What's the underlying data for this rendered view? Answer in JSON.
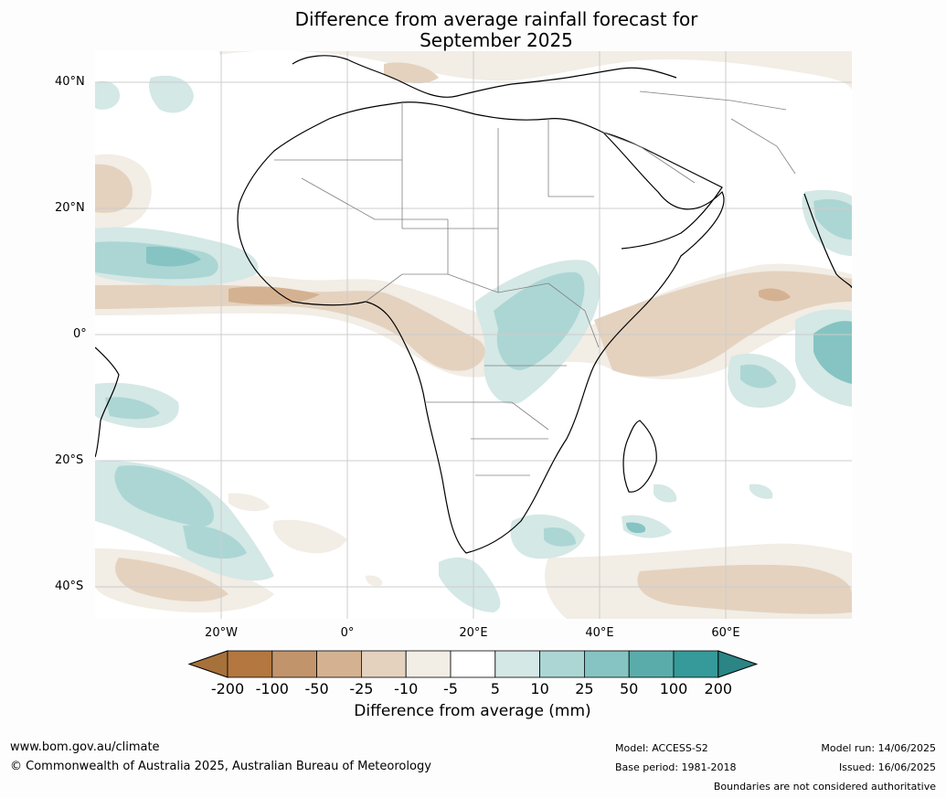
{
  "title": "Difference from average rainfall forecast for\nSeptember 2025",
  "map": {
    "lat_labels": [
      "40°N",
      "20°N",
      "0°",
      "20°S",
      "40°S"
    ],
    "lon_labels": [
      "20°W",
      "0°",
      "20°E",
      "40°E",
      "60°E"
    ],
    "colors": {
      "ocean": "#ffffff",
      "land_outline": "#000000",
      "borders": "#808080",
      "gridlines": "#cccccc"
    }
  },
  "colorbar": {
    "label": "Difference from average (mm)",
    "ticks": [
      "-200",
      "-100",
      "-50",
      "-25",
      "-10",
      "-5",
      "5",
      "10",
      "25",
      "50",
      "100",
      "200"
    ],
    "colors": [
      "#a6713a",
      "#b3773f",
      "#c2946c",
      "#d4b291",
      "#e4d2bf",
      "#f2ede5",
      "#ffffff",
      "#d4e8e6",
      "#acd6d4",
      "#85c4c2",
      "#5aacab",
      "#359a99",
      "#2a8584"
    ]
  },
  "footer": {
    "website": "www.bom.gov.au/climate",
    "copyright": "© Commonwealth of Australia 2025, Australian Bureau of Meteorology",
    "model": "Model: ACCESS-S2",
    "base_period": "Base period: 1981-2018",
    "model_run": "Model run: 14/06/2025",
    "issued": "Issued: 16/06/2025",
    "disclaimer": "Boundaries are not considered authoritative"
  }
}
